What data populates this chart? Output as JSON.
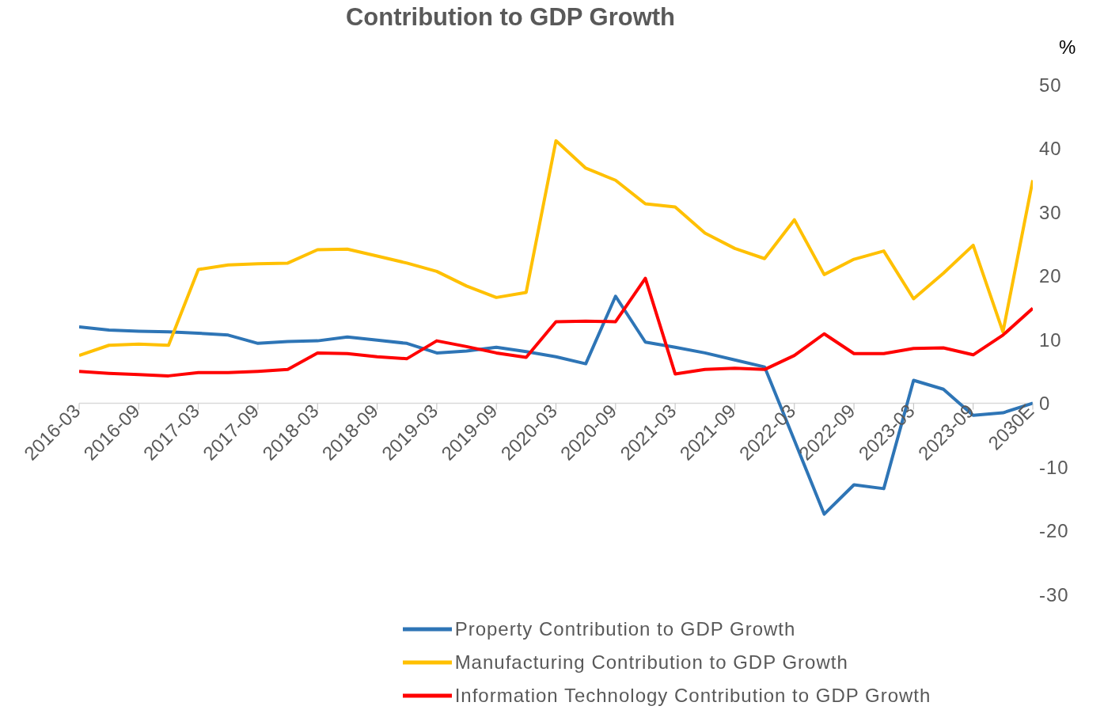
{
  "chart_data": {
    "type": "line",
    "title": "Contribution to GDP Growth",
    "ylabel": "%",
    "categories": [
      "2016-03",
      null,
      "2016-09",
      null,
      "2017-03",
      null,
      "2017-09",
      null,
      "2018-03",
      null,
      "2018-09",
      null,
      "2019-03",
      null,
      "2019-09",
      null,
      "2020-03",
      null,
      "2020-09",
      null,
      "2021-03",
      null,
      "2021-09",
      null,
      "2022-03",
      null,
      "2022-09",
      null,
      "2023-03",
      null,
      "2023-09",
      null,
      "2030E"
    ],
    "series": [
      {
        "name": "Property Contribution to GDP Growth",
        "color": "#2e75b6",
        "values": [
          12.0,
          11.5,
          11.3,
          11.2,
          11.0,
          10.7,
          9.4,
          9.7,
          9.8,
          10.4,
          9.9,
          9.4,
          7.9,
          8.2,
          8.8,
          8.1,
          7.3,
          6.2,
          16.8,
          9.6,
          8.8,
          7.9,
          6.8,
          5.7,
          -5.8,
          -17.4,
          -12.8,
          -13.4,
          3.6,
          2.2,
          -1.9,
          -1.5,
          0
        ]
      },
      {
        "name": "Manufacturing Contribution to GDP Growth",
        "color": "#ffc000",
        "values": [
          7.5,
          9.1,
          9.3,
          9.1,
          21.0,
          21.7,
          21.9,
          22.0,
          24.1,
          24.2,
          23.1,
          22.0,
          20.7,
          18.4,
          16.6,
          17.4,
          41.2,
          36.9,
          35.0,
          31.3,
          30.8,
          26.7,
          24.3,
          22.7,
          28.8,
          20.2,
          22.6,
          23.9,
          16.4,
          20.4,
          24.8,
          11.2,
          35.0
        ]
      },
      {
        "name": "Information Technology Contribution to GDP Growth",
        "color": "#ff0000",
        "values": [
          5.0,
          4.7,
          4.5,
          4.3,
          4.8,
          4.8,
          5.0,
          5.3,
          7.9,
          7.8,
          7.3,
          7.0,
          9.8,
          8.9,
          7.9,
          7.2,
          12.8,
          12.9,
          12.8,
          19.6,
          4.6,
          5.3,
          5.5,
          5.3,
          7.5,
          10.9,
          7.8,
          7.8,
          8.6,
          8.7,
          7.6,
          10.7,
          14.9
        ]
      }
    ],
    "ylim": [
      -30,
      50
    ],
    "yticks": [
      -30,
      -20,
      -10,
      0,
      10,
      20,
      30,
      40,
      50
    ],
    "legend": "bottom",
    "marker": "none",
    "line_style": "solid"
  }
}
